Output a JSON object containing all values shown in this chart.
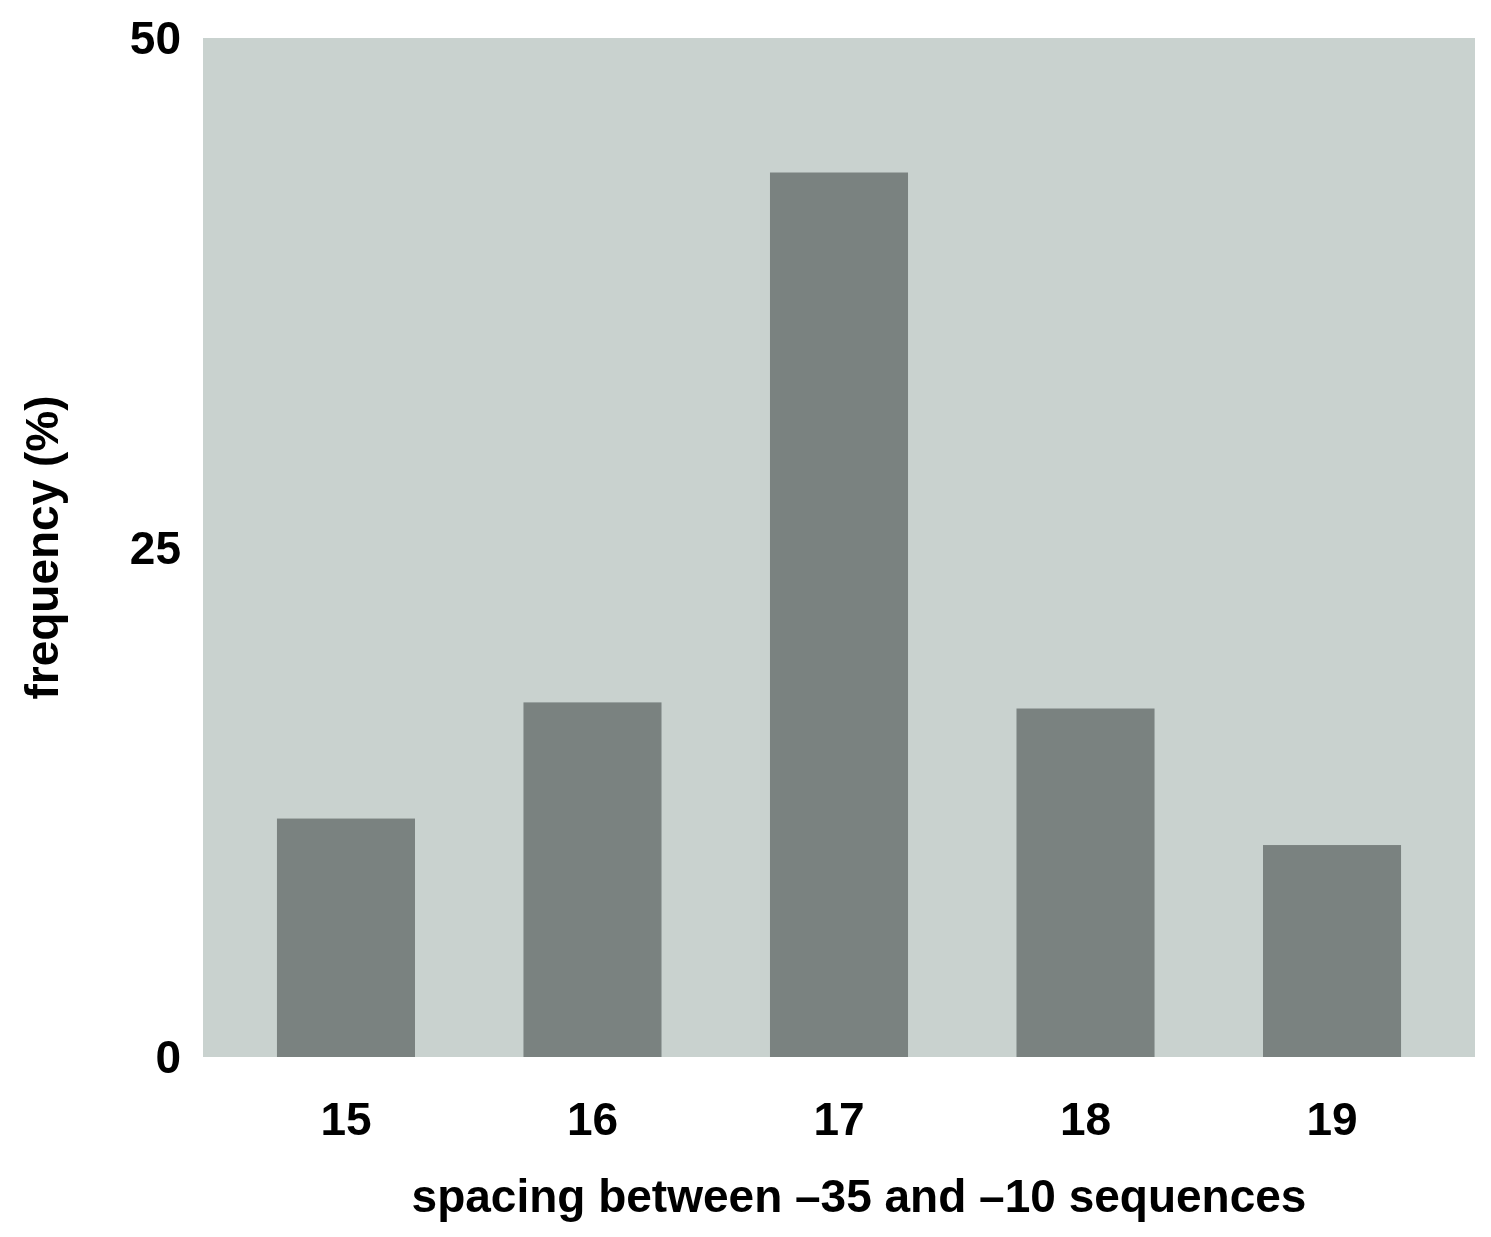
{
  "chart_data": {
    "type": "bar",
    "xlabel": "spacing between –35 and –10 sequences",
    "ylabel": "frequency (%)",
    "categories": [
      "15",
      "16",
      "17",
      "18",
      "19"
    ],
    "values": [
      11.7,
      17.4,
      43.4,
      17.1,
      10.4
    ],
    "color": "#7a8280",
    "ylim": [
      0,
      50
    ],
    "yticks": [
      0,
      25,
      50
    ],
    "grid": false
  }
}
